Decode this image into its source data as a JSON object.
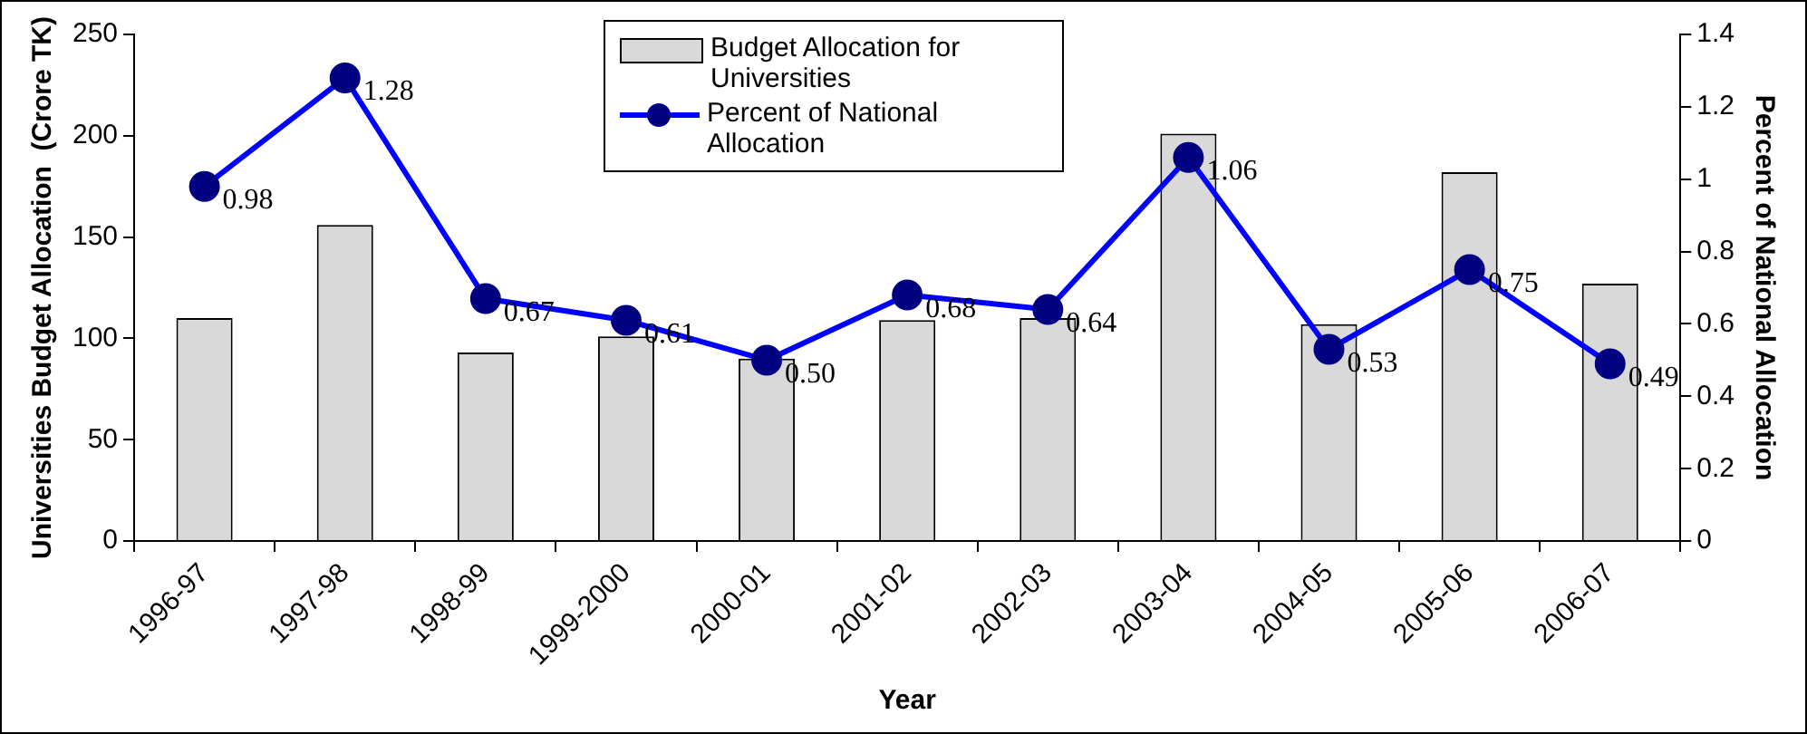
{
  "chart_data": {
    "type": "bar",
    "xlabel": "Year",
    "ylabel": "Universities Budget Allocation  (Crore TK)",
    "y2label": "Percent of National Allocation",
    "categories": [
      "1996-97",
      "1997-98",
      "1998-99",
      "1999-2000",
      "2000-01",
      "2001-02",
      "2002-03",
      "2003-04",
      "2004-05",
      "2005-06",
      "2006-07"
    ],
    "series": [
      {
        "name": "Budget Allocation for Universities",
        "color": "#d9d9d9",
        "values": [
          110,
          156,
          93,
          101,
          90,
          109,
          110,
          201,
          107,
          182,
          127
        ]
      },
      {
        "name": "Percent of National Allocation",
        "type": "line",
        "axis": "y2",
        "color": "#0000ff",
        "values": [
          0.98,
          1.28,
          0.67,
          0.61,
          0.5,
          0.68,
          0.64,
          1.06,
          0.53,
          0.75,
          0.49
        ],
        "value_labels": [
          "0.98",
          "1.28",
          "0.67",
          "0.61",
          "0.50",
          "0.68",
          "0.64",
          "1.06",
          "0.53",
          "0.75",
          "0.49"
        ]
      }
    ],
    "ylim": [
      0,
      250
    ],
    "yticks": [
      0,
      50,
      100,
      150,
      200,
      250
    ],
    "y2lim": [
      0,
      1.4
    ],
    "y2ticks": [
      0,
      0.2,
      0.4,
      0.6,
      0.8,
      1,
      1.2,
      1.4
    ],
    "grid": false,
    "legend": "top",
    "marker": "circle",
    "line_style": "solid"
  }
}
